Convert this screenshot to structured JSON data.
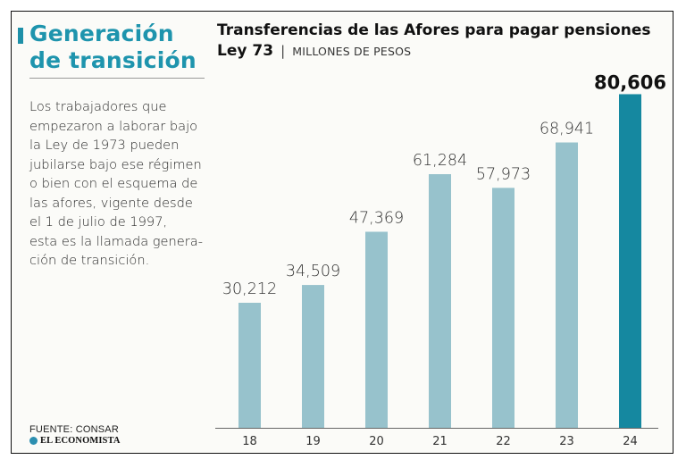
{
  "sidebar": {
    "headline_lines": [
      "Generación",
      "de transición"
    ],
    "body_lines": [
      "Los trabajadores que",
      "empezaron a laborar bajo",
      "la Ley de 1973 pueden",
      "jubilarse bajo ese régimen",
      "o bien con el esquema de",
      "las afores, vigente desde",
      "el 1 de julio de 1997,",
      "esta es la llamada genera-",
      "ción de transición."
    ],
    "source": "FUENTE: CONSAR",
    "brand": "EL ECONOMISTA"
  },
  "colors": {
    "accent": "#1e94ad",
    "bar": "#97c2cc",
    "bar_highlight": "#1588a0"
  },
  "chart_data": {
    "type": "bar",
    "title": "Transferencias de las Afores para pagar pensiones",
    "subtitle_strong": "Ley 73",
    "subtitle_sep": "|",
    "subtitle_unit": "MILLONES DE PESOS",
    "categories": [
      "18",
      "19",
      "20",
      "21",
      "22",
      "23",
      "24"
    ],
    "values": [
      30212,
      34509,
      47369,
      61284,
      57973,
      68941,
      80606
    ],
    "value_labels": [
      "30,212",
      "34,509",
      "47,369",
      "61,284",
      "57,973",
      "68,941",
      "80,606"
    ],
    "highlight_index": 6,
    "ylim": [
      0,
      82000
    ],
    "xlabel": "",
    "ylabel": "",
    "grid": false
  }
}
